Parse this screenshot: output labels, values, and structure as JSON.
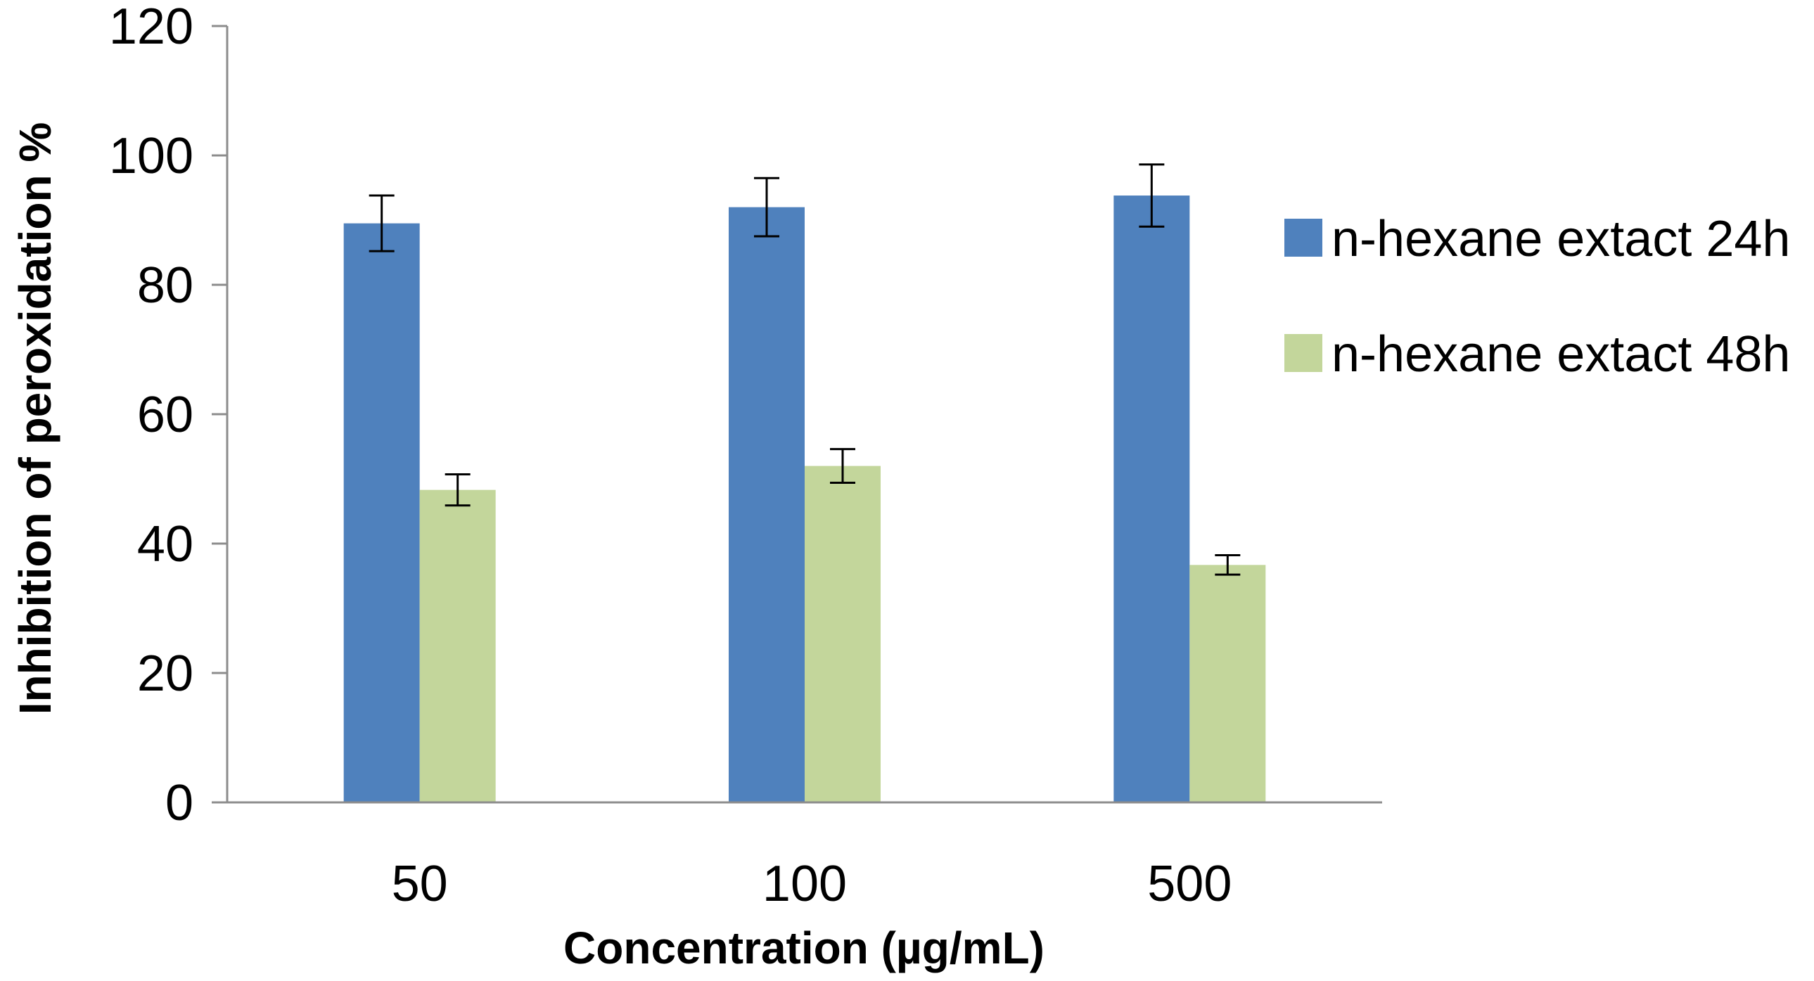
{
  "chart_data": {
    "type": "bar",
    "title": "",
    "xlabel": "Concentration (µg/mL)",
    "ylabel": "Inhibition of peroxidation %",
    "categories": [
      "50",
      "100",
      "500"
    ],
    "ylim": [
      0,
      120
    ],
    "yticks": [
      0,
      20,
      40,
      60,
      80,
      100,
      120
    ],
    "ytick_labels": [
      "0",
      "20",
      "40",
      "60",
      "80",
      "100",
      "120"
    ],
    "grid": false,
    "legend_position": "right",
    "series": [
      {
        "name": "n-hexane extact 24h",
        "color": "#4f81bd",
        "values": [
          89.5,
          92,
          93.8
        ],
        "errors": [
          4.3,
          4.5,
          4.8
        ]
      },
      {
        "name": "n-hexane extact 48h",
        "color": "#c3d69b",
        "values": [
          48.3,
          52,
          36.7
        ],
        "errors": [
          2.4,
          2.6,
          1.5
        ]
      }
    ]
  }
}
